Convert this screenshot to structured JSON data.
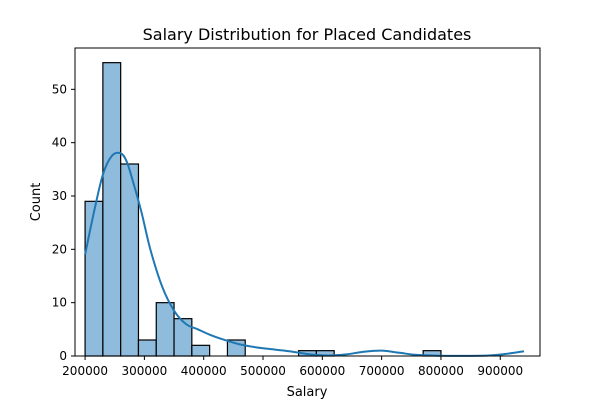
{
  "chart_data": {
    "type": "histogram",
    "title": "Salary Distribution for Placed Candidates",
    "xlabel": "Salary",
    "ylabel": "Count",
    "xlim": [
      183000,
      967000
    ],
    "ylim": [
      0,
      57.75
    ],
    "x_ticks": [
      200000,
      300000,
      400000,
      500000,
      600000,
      700000,
      800000,
      900000
    ],
    "y_ticks": [
      0,
      10,
      20,
      30,
      40,
      50
    ],
    "x_tick_labels": [
      "200000",
      "300000",
      "400000",
      "500000",
      "600000",
      "700000",
      "800000",
      "900000"
    ],
    "y_tick_labels": [
      "0",
      "10",
      "20",
      "30",
      "40",
      "50"
    ],
    "bins": {
      "start": 200000,
      "width": 30000,
      "counts": [
        29,
        55,
        36,
        3,
        10,
        7,
        2,
        0,
        3,
        0,
        0,
        0,
        1,
        1,
        0,
        0,
        0,
        0,
        0,
        1
      ]
    },
    "kde": {
      "x": [
        200000,
        215000,
        230000,
        245000,
        260000,
        270000,
        280000,
        295000,
        310000,
        330000,
        350000,
        370000,
        390000,
        410000,
        430000,
        460000,
        490000,
        520000,
        550000,
        580000,
        610000,
        640000,
        670000,
        700000,
        730000,
        760000,
        800000,
        840000,
        880000,
        910000,
        940000
      ],
      "y": [
        19,
        27,
        34,
        37.5,
        38,
        36.5,
        33,
        27,
        20,
        13,
        8.5,
        6,
        5,
        4,
        3.2,
        2.2,
        1.6,
        1.2,
        0.8,
        0.3,
        0.1,
        0.3,
        0.8,
        1,
        0.6,
        0.2,
        0.05,
        0.03,
        0.1,
        0.4,
        0.9
      ]
    },
    "grid": false,
    "legend": "none"
  }
}
